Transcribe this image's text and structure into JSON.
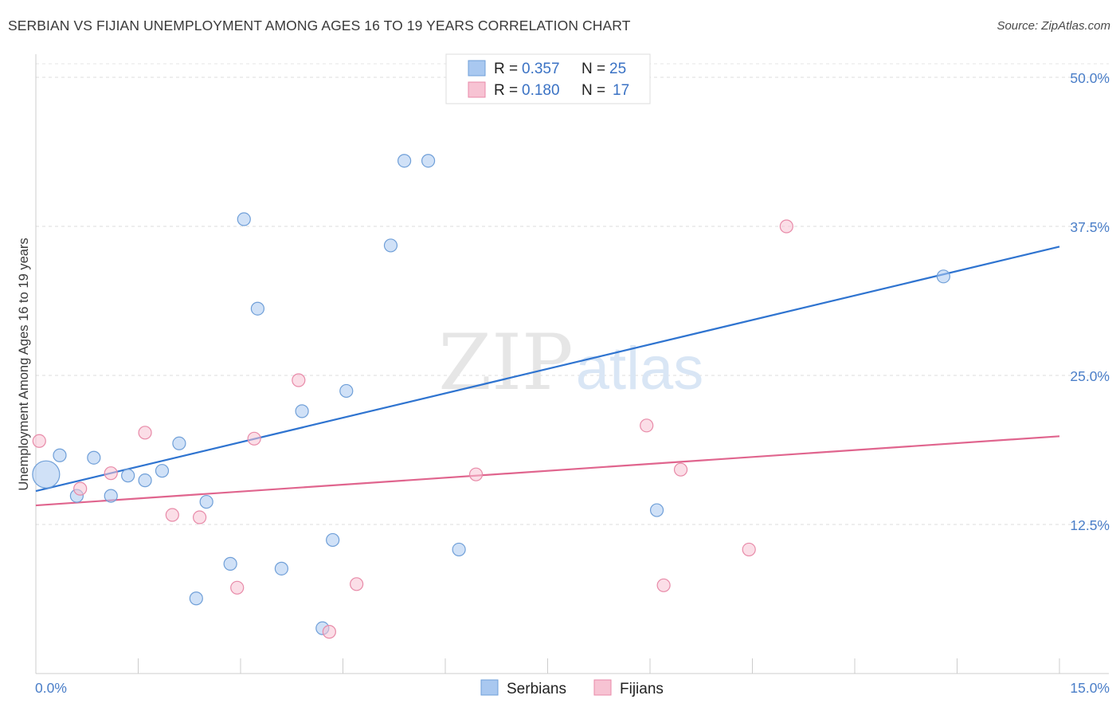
{
  "chart_data": {
    "type": "scatter",
    "title": "SERBIAN VS FIJIAN UNEMPLOYMENT AMONG AGES 16 TO 19 YEARS CORRELATION CHART",
    "source": "Source: ZipAtlas.com",
    "xlabel": "",
    "ylabel": "Unemployment Among Ages 16 to 19 years",
    "xlim": [
      0,
      15
    ],
    "ylim": [
      0,
      50
    ],
    "x_tick_labels": [
      "0.0%",
      "15.0%"
    ],
    "y_tick_labels": [
      "50.0%",
      "37.5%",
      "25.0%",
      "12.5%"
    ],
    "y_ticks": [
      50,
      37.5,
      25,
      12.5
    ],
    "grid": true,
    "watermark": "ZIPatlas",
    "series": [
      {
        "name": "Serbians",
        "color": "#a9c8f0",
        "edge_color": "#6f9fd8",
        "line_color": "#2f74d0",
        "r": "0.357",
        "n": "25",
        "trend": {
          "x0": 0,
          "y0": 15.3,
          "x1": 15,
          "y1": 35.8
        },
        "points": [
          {
            "x": 0.15,
            "y": 16.7,
            "big": true
          },
          {
            "x": 0.35,
            "y": 18.3
          },
          {
            "x": 0.6,
            "y": 14.9
          },
          {
            "x": 0.85,
            "y": 18.1
          },
          {
            "x": 1.1,
            "y": 14.9
          },
          {
            "x": 1.35,
            "y": 16.6
          },
          {
            "x": 1.6,
            "y": 16.2
          },
          {
            "x": 1.85,
            "y": 17.0
          },
          {
            "x": 2.1,
            "y": 19.3
          },
          {
            "x": 2.5,
            "y": 14.4
          },
          {
            "x": 2.85,
            "y": 9.2
          },
          {
            "x": 2.35,
            "y": 6.3
          },
          {
            "x": 3.05,
            "y": 38.1
          },
          {
            "x": 3.25,
            "y": 30.6
          },
          {
            "x": 3.6,
            "y": 8.8
          },
          {
            "x": 3.9,
            "y": 22.0
          },
          {
            "x": 4.2,
            "y": 3.8
          },
          {
            "x": 4.35,
            "y": 11.2
          },
          {
            "x": 4.55,
            "y": 23.7
          },
          {
            "x": 5.2,
            "y": 35.9
          },
          {
            "x": 5.4,
            "y": 43.0
          },
          {
            "x": 5.75,
            "y": 43.0
          },
          {
            "x": 6.2,
            "y": 10.4
          },
          {
            "x": 9.1,
            "y": 13.7
          },
          {
            "x": 13.3,
            "y": 33.3
          }
        ]
      },
      {
        "name": "Fijians",
        "color": "#f7c3d3",
        "edge_color": "#e88aa8",
        "line_color": "#e0658e",
        "r": "0.180",
        "n": "17",
        "trend": {
          "x0": 0,
          "y0": 14.1,
          "x1": 15,
          "y1": 19.9
        },
        "points": [
          {
            "x": 0.05,
            "y": 19.5
          },
          {
            "x": 0.65,
            "y": 15.5
          },
          {
            "x": 1.1,
            "y": 16.8
          },
          {
            "x": 1.6,
            "y": 20.2
          },
          {
            "x": 2.0,
            "y": 13.3
          },
          {
            "x": 2.4,
            "y": 13.1
          },
          {
            "x": 2.95,
            "y": 7.2
          },
          {
            "x": 3.2,
            "y": 19.7
          },
          {
            "x": 3.85,
            "y": 24.6
          },
          {
            "x": 4.3,
            "y": 3.5
          },
          {
            "x": 4.7,
            "y": 7.5
          },
          {
            "x": 6.45,
            "y": 16.7
          },
          {
            "x": 8.95,
            "y": 20.8
          },
          {
            "x": 9.2,
            "y": 7.4
          },
          {
            "x": 9.45,
            "y": 17.1
          },
          {
            "x": 10.45,
            "y": 10.4
          },
          {
            "x": 11.0,
            "y": 37.5
          }
        ]
      }
    ]
  },
  "legend": {
    "r_label": "R =",
    "n_label": "N ="
  }
}
